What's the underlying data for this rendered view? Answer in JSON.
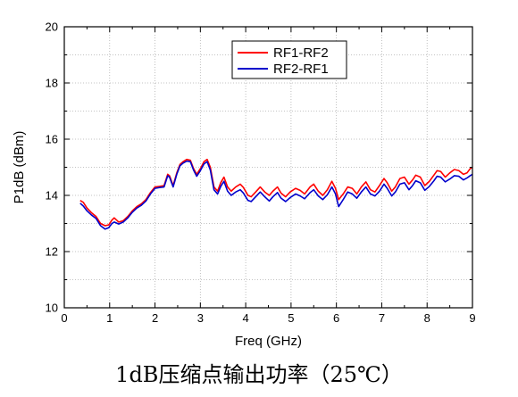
{
  "caption": "1dB压缩点输出功率（25℃）",
  "chart_data": {
    "type": "line",
    "title": "",
    "xlabel": "Freq (GHz)",
    "ylabel": "P1dB (dBm)",
    "xlim": [
      0,
      9
    ],
    "ylim": [
      10,
      20
    ],
    "xticks": [
      0,
      1,
      2,
      3,
      4,
      5,
      6,
      7,
      8,
      9
    ],
    "yticks": [
      10,
      12,
      14,
      16,
      18,
      20
    ],
    "grid": true,
    "legend_position": "top-right",
    "series": [
      {
        "name": "RF1-RF2",
        "color": "#ff0000",
        "points": [
          [
            0.35,
            13.82
          ],
          [
            0.42,
            13.75
          ],
          [
            0.5,
            13.55
          ],
          [
            0.6,
            13.38
          ],
          [
            0.7,
            13.25
          ],
          [
            0.8,
            13.0
          ],
          [
            0.9,
            12.92
          ],
          [
            0.98,
            12.95
          ],
          [
            1.05,
            13.12
          ],
          [
            1.1,
            13.2
          ],
          [
            1.2,
            13.05
          ],
          [
            1.3,
            13.1
          ],
          [
            1.4,
            13.25
          ],
          [
            1.5,
            13.45
          ],
          [
            1.6,
            13.6
          ],
          [
            1.7,
            13.7
          ],
          [
            1.8,
            13.85
          ],
          [
            1.9,
            14.1
          ],
          [
            2.0,
            14.3
          ],
          [
            2.1,
            14.32
          ],
          [
            2.2,
            14.35
          ],
          [
            2.28,
            14.75
          ],
          [
            2.32,
            14.7
          ],
          [
            2.4,
            14.35
          ],
          [
            2.48,
            14.8
          ],
          [
            2.55,
            15.1
          ],
          [
            2.62,
            15.2
          ],
          [
            2.7,
            15.28
          ],
          [
            2.78,
            15.25
          ],
          [
            2.85,
            14.95
          ],
          [
            2.92,
            14.75
          ],
          [
            3.0,
            14.95
          ],
          [
            3.08,
            15.2
          ],
          [
            3.15,
            15.28
          ],
          [
            3.22,
            15.0
          ],
          [
            3.3,
            14.3
          ],
          [
            3.38,
            14.15
          ],
          [
            3.45,
            14.45
          ],
          [
            3.52,
            14.65
          ],
          [
            3.6,
            14.3
          ],
          [
            3.68,
            14.15
          ],
          [
            3.78,
            14.3
          ],
          [
            3.88,
            14.4
          ],
          [
            3.95,
            14.28
          ],
          [
            4.05,
            14.0
          ],
          [
            4.12,
            13.95
          ],
          [
            4.22,
            14.12
          ],
          [
            4.32,
            14.3
          ],
          [
            4.42,
            14.12
          ],
          [
            4.52,
            14.0
          ],
          [
            4.6,
            14.15
          ],
          [
            4.7,
            14.3
          ],
          [
            4.78,
            14.08
          ],
          [
            4.88,
            13.95
          ],
          [
            4.98,
            14.12
          ],
          [
            5.1,
            14.25
          ],
          [
            5.2,
            14.18
          ],
          [
            5.3,
            14.05
          ],
          [
            5.42,
            14.3
          ],
          [
            5.5,
            14.4
          ],
          [
            5.6,
            14.15
          ],
          [
            5.7,
            14.0
          ],
          [
            5.8,
            14.2
          ],
          [
            5.9,
            14.5
          ],
          [
            5.98,
            14.25
          ],
          [
            6.05,
            13.85
          ],
          [
            6.15,
            14.05
          ],
          [
            6.25,
            14.3
          ],
          [
            6.35,
            14.25
          ],
          [
            6.45,
            14.05
          ],
          [
            6.55,
            14.3
          ],
          [
            6.65,
            14.48
          ],
          [
            6.75,
            14.2
          ],
          [
            6.85,
            14.12
          ],
          [
            6.95,
            14.35
          ],
          [
            7.05,
            14.6
          ],
          [
            7.12,
            14.45
          ],
          [
            7.22,
            14.15
          ],
          [
            7.3,
            14.3
          ],
          [
            7.4,
            14.6
          ],
          [
            7.5,
            14.65
          ],
          [
            7.6,
            14.4
          ],
          [
            7.68,
            14.55
          ],
          [
            7.75,
            14.72
          ],
          [
            7.85,
            14.65
          ],
          [
            7.95,
            14.35
          ],
          [
            8.05,
            14.5
          ],
          [
            8.15,
            14.72
          ],
          [
            8.22,
            14.88
          ],
          [
            8.3,
            14.85
          ],
          [
            8.4,
            14.65
          ],
          [
            8.5,
            14.8
          ],
          [
            8.6,
            14.92
          ],
          [
            8.7,
            14.88
          ],
          [
            8.8,
            14.75
          ],
          [
            8.88,
            14.8
          ],
          [
            8.95,
            14.95
          ],
          [
            9.0,
            15.0
          ]
        ]
      },
      {
        "name": "RF2-RF1",
        "color": "#0000cc",
        "points": [
          [
            0.35,
            13.72
          ],
          [
            0.42,
            13.62
          ],
          [
            0.5,
            13.45
          ],
          [
            0.6,
            13.3
          ],
          [
            0.7,
            13.18
          ],
          [
            0.8,
            12.92
          ],
          [
            0.9,
            12.8
          ],
          [
            0.98,
            12.85
          ],
          [
            1.05,
            13.0
          ],
          [
            1.1,
            13.05
          ],
          [
            1.2,
            12.98
          ],
          [
            1.3,
            13.05
          ],
          [
            1.4,
            13.2
          ],
          [
            1.5,
            13.4
          ],
          [
            1.6,
            13.55
          ],
          [
            1.7,
            13.65
          ],
          [
            1.8,
            13.8
          ],
          [
            1.9,
            14.05
          ],
          [
            2.0,
            14.25
          ],
          [
            2.1,
            14.28
          ],
          [
            2.2,
            14.3
          ],
          [
            2.28,
            14.7
          ],
          [
            2.32,
            14.65
          ],
          [
            2.4,
            14.3
          ],
          [
            2.48,
            14.75
          ],
          [
            2.55,
            15.05
          ],
          [
            2.62,
            15.15
          ],
          [
            2.7,
            15.22
          ],
          [
            2.78,
            15.2
          ],
          [
            2.85,
            14.9
          ],
          [
            2.92,
            14.68
          ],
          [
            3.0,
            14.88
          ],
          [
            3.08,
            15.12
          ],
          [
            3.15,
            15.2
          ],
          [
            3.22,
            14.9
          ],
          [
            3.3,
            14.2
          ],
          [
            3.38,
            14.05
          ],
          [
            3.45,
            14.32
          ],
          [
            3.52,
            14.5
          ],
          [
            3.6,
            14.15
          ],
          [
            3.68,
            14.0
          ],
          [
            3.78,
            14.12
          ],
          [
            3.88,
            14.2
          ],
          [
            3.95,
            14.08
          ],
          [
            4.05,
            13.82
          ],
          [
            4.12,
            13.78
          ],
          [
            4.22,
            13.95
          ],
          [
            4.32,
            14.12
          ],
          [
            4.42,
            13.95
          ],
          [
            4.52,
            13.8
          ],
          [
            4.6,
            13.95
          ],
          [
            4.7,
            14.1
          ],
          [
            4.78,
            13.9
          ],
          [
            4.88,
            13.78
          ],
          [
            4.98,
            13.92
          ],
          [
            5.1,
            14.05
          ],
          [
            5.2,
            13.98
          ],
          [
            5.3,
            13.88
          ],
          [
            5.42,
            14.1
          ],
          [
            5.5,
            14.2
          ],
          [
            5.6,
            13.98
          ],
          [
            5.7,
            13.85
          ],
          [
            5.8,
            14.02
          ],
          [
            5.9,
            14.3
          ],
          [
            5.98,
            14.05
          ],
          [
            6.05,
            13.6
          ],
          [
            6.15,
            13.85
          ],
          [
            6.25,
            14.12
          ],
          [
            6.35,
            14.05
          ],
          [
            6.45,
            13.9
          ],
          [
            6.55,
            14.12
          ],
          [
            6.65,
            14.3
          ],
          [
            6.75,
            14.05
          ],
          [
            6.85,
            13.98
          ],
          [
            6.95,
            14.15
          ],
          [
            7.05,
            14.4
          ],
          [
            7.12,
            14.25
          ],
          [
            7.22,
            13.98
          ],
          [
            7.3,
            14.12
          ],
          [
            7.4,
            14.4
          ],
          [
            7.5,
            14.45
          ],
          [
            7.6,
            14.2
          ],
          [
            7.68,
            14.35
          ],
          [
            7.75,
            14.52
          ],
          [
            7.85,
            14.45
          ],
          [
            7.95,
            14.18
          ],
          [
            8.05,
            14.32
          ],
          [
            8.15,
            14.52
          ],
          [
            8.22,
            14.68
          ],
          [
            8.3,
            14.65
          ],
          [
            8.4,
            14.48
          ],
          [
            8.5,
            14.58
          ],
          [
            8.6,
            14.7
          ],
          [
            8.7,
            14.68
          ],
          [
            8.8,
            14.55
          ],
          [
            8.88,
            14.62
          ],
          [
            8.95,
            14.7
          ],
          [
            9.0,
            14.75
          ]
        ]
      }
    ]
  }
}
